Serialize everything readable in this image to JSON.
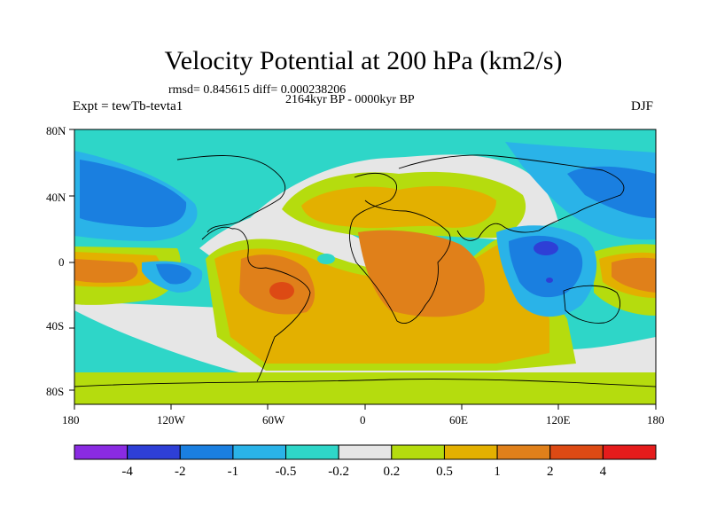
{
  "title": "Velocity Potential at 200 hPa (km2/s)",
  "stats": "rmsd= 0.845615 diff= 0.000238206",
  "period": "2164kyr BP - 0000kyr BP",
  "experiment": "Expt = tewTb-tevta1",
  "season": "DJF",
  "lat_ticks": [
    "80N",
    "40N",
    "0",
    "40S",
    "80S"
  ],
  "lon_ticks": [
    "180",
    "120W",
    "60W",
    "0",
    "60E",
    "120E",
    "180"
  ],
  "colorbar": {
    "labels": [
      "-4",
      "-2",
      "-1",
      "-0.5",
      "-0.2",
      "0.2",
      "0.5",
      "1",
      "2",
      "4"
    ],
    "colors": [
      "#8a2be2",
      "#2e3fd6",
      "#1a7fe0",
      "#2ab3e8",
      "#2ed6c8",
      "#e6e6e6",
      "#b5dc0e",
      "#e3b000",
      "#e0801a",
      "#dd4a14",
      "#e51c1c"
    ]
  }
}
